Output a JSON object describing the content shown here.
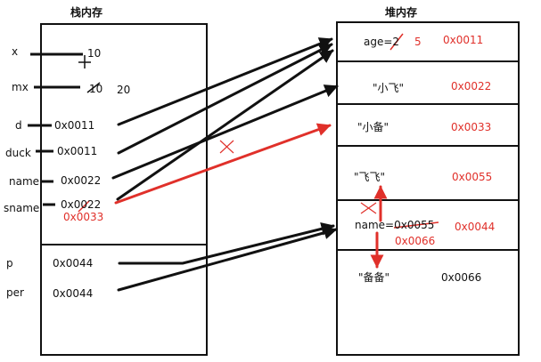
{
  "stack": {
    "title": "栈内存",
    "vars": [
      {
        "name": "x",
        "value": "10"
      },
      {
        "name": "mx",
        "value": "10",
        "new_value": "20"
      },
      {
        "name": "d",
        "value": "0x0011"
      },
      {
        "name": "duck",
        "value": "0x0011"
      },
      {
        "name": "name",
        "value": "0x0022"
      },
      {
        "name": "sname",
        "value": "0x0022",
        "new_value": "0x0033"
      },
      {
        "name": "p",
        "value": "0x0044"
      },
      {
        "name": "per",
        "value": "0x0044"
      }
    ]
  },
  "heap": {
    "title": "堆内存",
    "cells": [
      {
        "content": "age=2",
        "content_new": "5",
        "address": "0x0011"
      },
      {
        "content": "\"小飞\"",
        "address": "0x0022"
      },
      {
        "content": "\"小备\"",
        "address": "0x0033"
      },
      {
        "content": "\"飞飞\"",
        "address": "0x0055"
      },
      {
        "content": "name=0x0055",
        "content_new": "0x0066",
        "address": "0x0044"
      },
      {
        "content": "\"备备\"",
        "address": "0x0066"
      }
    ]
  },
  "colors": {
    "ink": "#111111",
    "highlight": "#e0302a"
  }
}
